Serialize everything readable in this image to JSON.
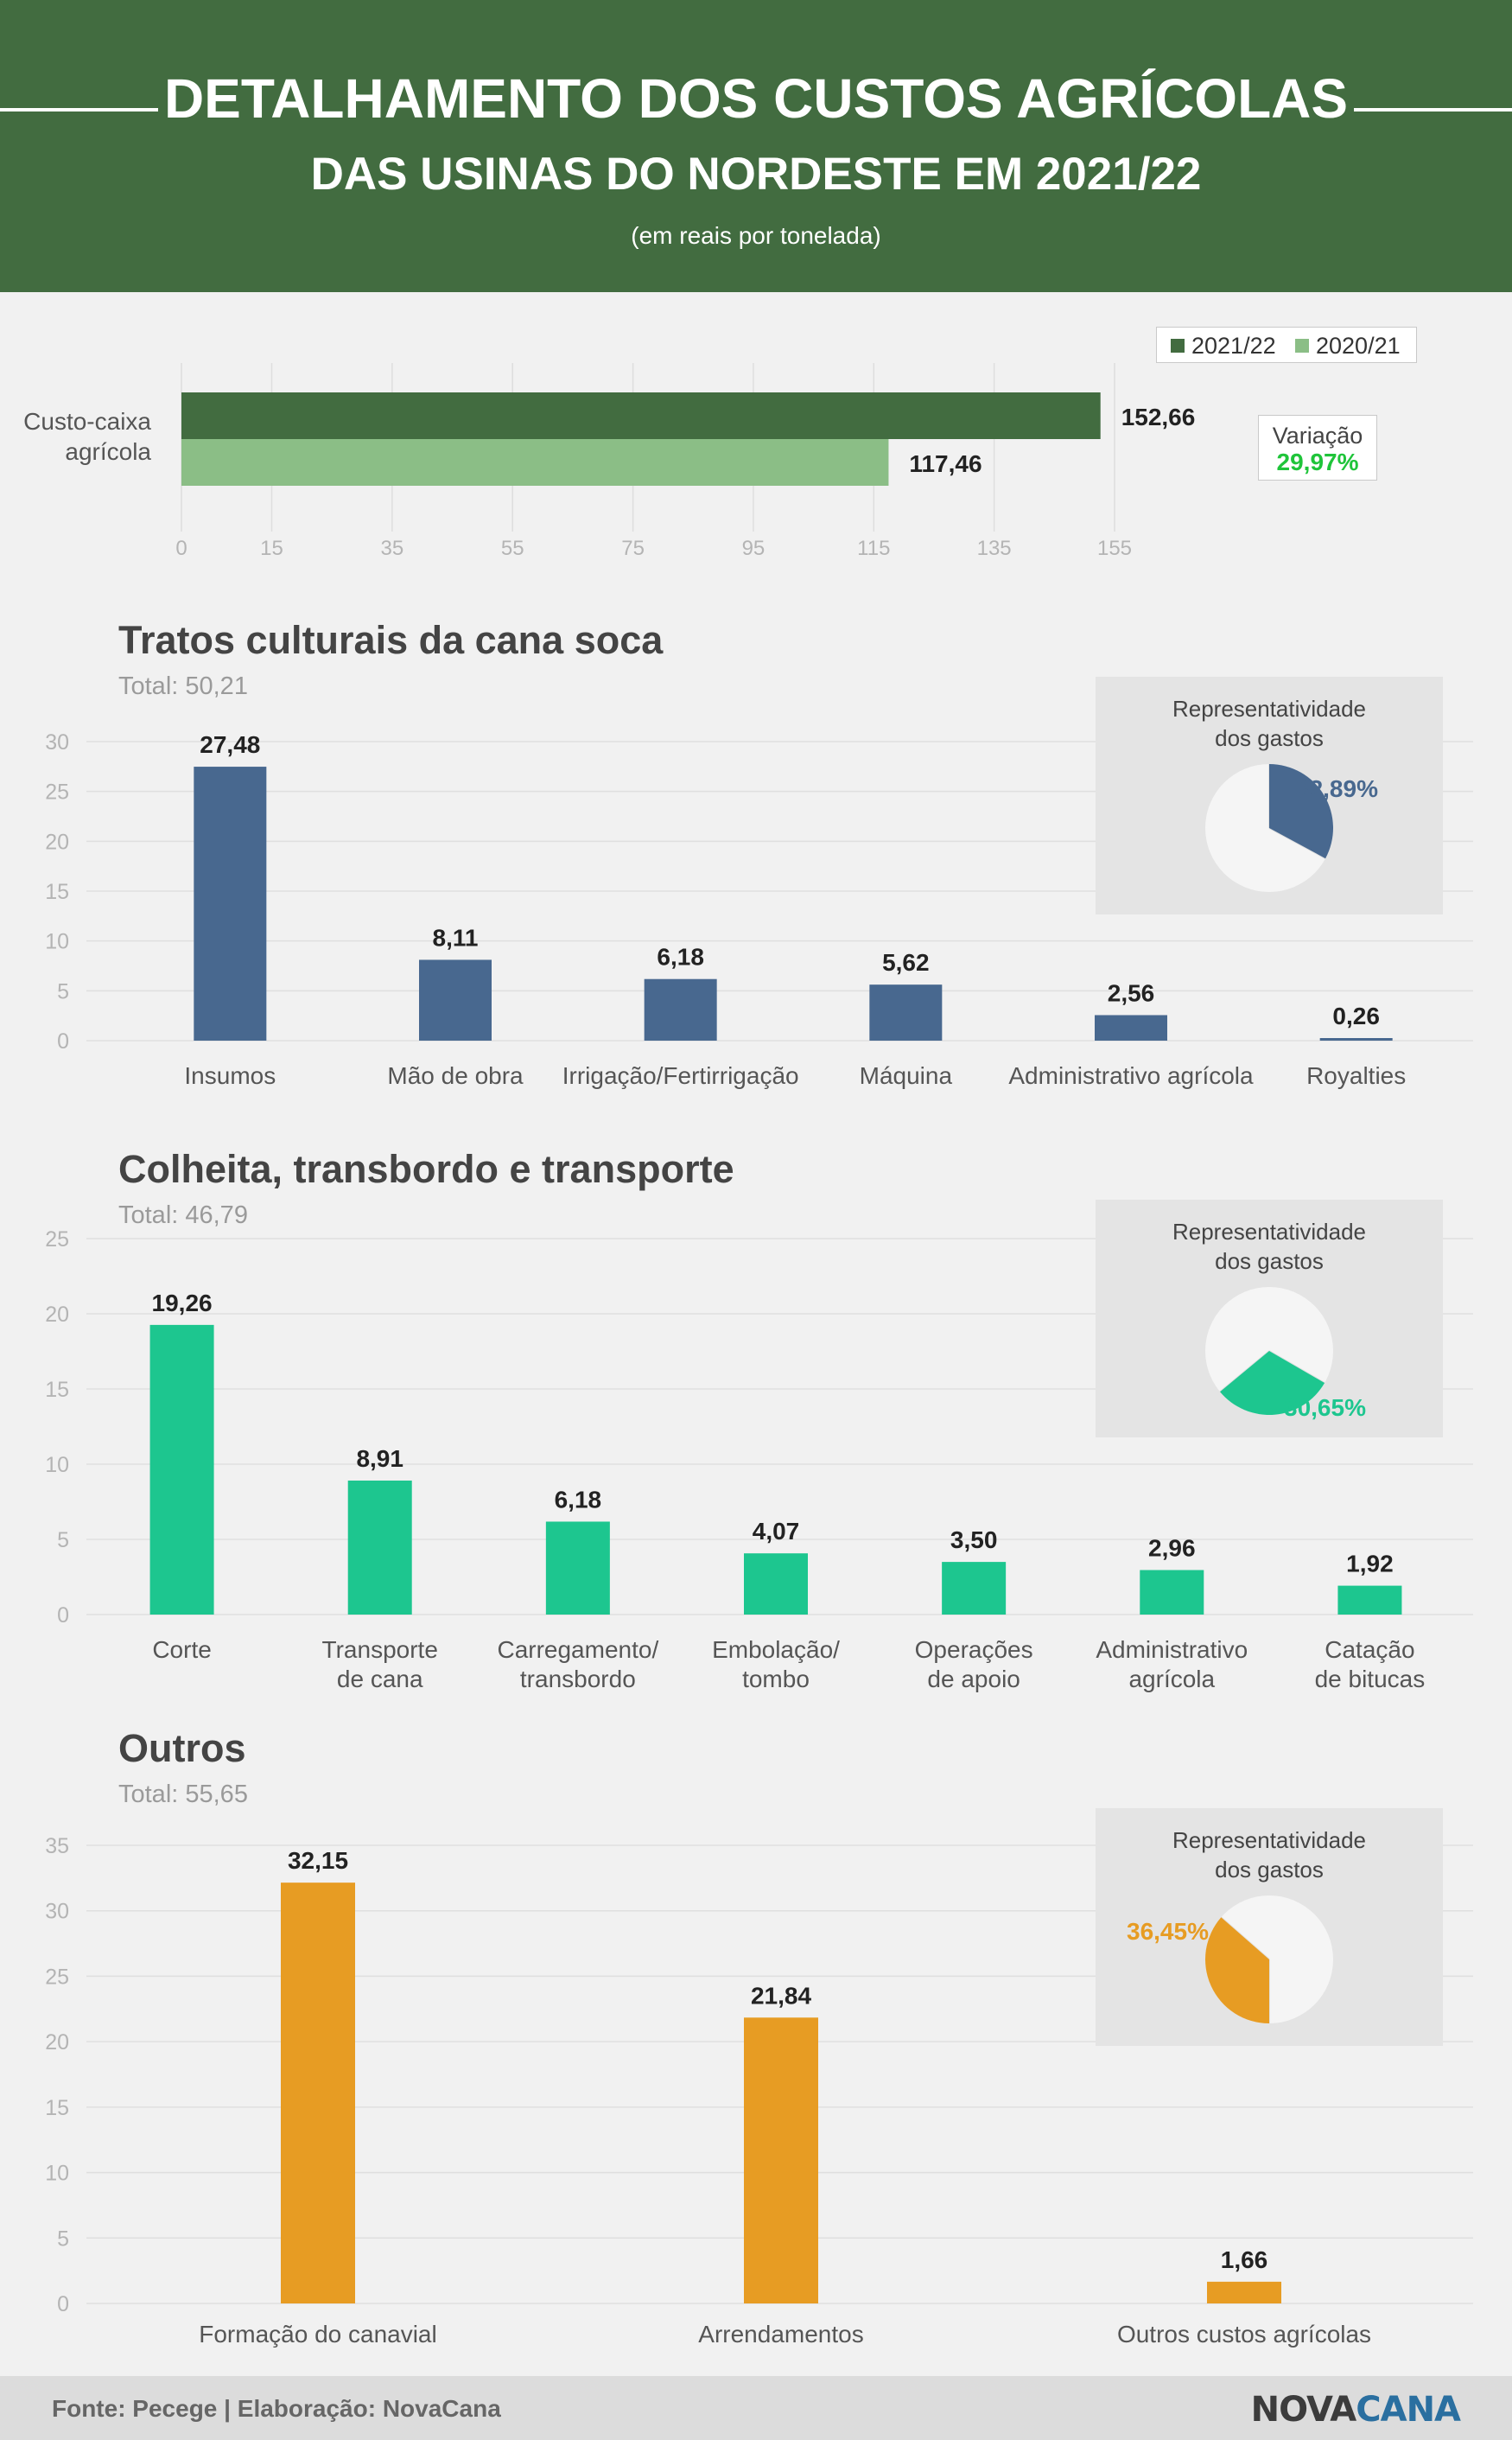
{
  "header": {
    "title_line1": "DETALHAMENTO DOS CUSTOS AGRÍCOLAS",
    "title_line2": "DAS USINAS DO NORDESTE EM 2021/22",
    "subtitle": "(em reais por tonelada)"
  },
  "colors": {
    "header_bg": "#426c40",
    "dark_green": "#426c40",
    "light_green": "#8bbe86",
    "blue": "#48688f",
    "teal": "#1dc68f",
    "orange": "#e79c23",
    "variation_green": "#1fc43a"
  },
  "overview": {
    "legend": [
      "2021/22",
      "2020/21"
    ],
    "variation_label": "Variação",
    "variation_value": "29,97%"
  },
  "sections": [
    {
      "title": "Tratos culturais da cana soca",
      "total": "Total: 50,21",
      "pie_caption": [
        "Representatividade",
        "dos gastos"
      ],
      "pie_label": "32,89%"
    },
    {
      "title": "Colheita, transbordo e transporte",
      "total": "Total: 46,79",
      "pie_caption": [
        "Representatividade",
        "dos gastos"
      ],
      "pie_label": "30,65%"
    },
    {
      "title": "Outros",
      "total": "Total: 55,65",
      "pie_caption": [
        "Representatividade",
        "dos gastos"
      ],
      "pie_label": "36,45%"
    }
  ],
  "footer": {
    "source": "Fonte: Pecege | Elaboração: NovaCana",
    "logo_part1": "NOVA",
    "logo_part2": "CANA"
  },
  "chart_data": [
    {
      "type": "bar",
      "orientation": "horizontal",
      "categories": [
        "Custo-caixa agrícola"
      ],
      "series": [
        {
          "name": "2021/22",
          "values": [
            152.66
          ],
          "labels": [
            "152,66"
          ]
        },
        {
          "name": "2020/21",
          "values": [
            117.46
          ],
          "labels": [
            "117,46"
          ]
        }
      ],
      "xticks": [
        "0",
        "15",
        "35",
        "55",
        "75",
        "95",
        "115",
        "135",
        "155"
      ],
      "xtick_values": [
        0,
        15,
        35,
        55,
        75,
        95,
        115,
        135,
        155
      ],
      "xlim": [
        0,
        155
      ],
      "grid": true,
      "legend": "top-right"
    },
    {
      "type": "bar",
      "title": "Tratos culturais da cana soca",
      "subtitle": "Total: 50,21",
      "categories": [
        [
          "Insumos"
        ],
        [
          "Mão de obra"
        ],
        [
          "Irrigação/Fertirrigação"
        ],
        [
          "Máquina"
        ],
        [
          "Administrativo agrícola"
        ],
        [
          "Royalties"
        ]
      ],
      "values": [
        27.48,
        8.11,
        6.18,
        5.62,
        2.56,
        0.26
      ],
      "labels": [
        "27,48",
        "8,11",
        "6,18",
        "5,62",
        "2,56",
        "0,26"
      ],
      "yticks": [
        "0",
        "5",
        "10",
        "15",
        "20",
        "25",
        "30"
      ],
      "ylim": [
        0,
        30
      ],
      "share": 32.89,
      "share_label": "32,89%",
      "grid": true
    },
    {
      "type": "bar",
      "title": "Colheita, transbordo e transporte",
      "subtitle": "Total: 46,79",
      "categories": [
        [
          "Corte"
        ],
        [
          "Transporte",
          "de cana"
        ],
        [
          "Carregamento/",
          "transbordo"
        ],
        [
          "Embolação/",
          "tombo"
        ],
        [
          "Operações",
          "de apoio"
        ],
        [
          "Administrativo",
          "agrícola"
        ],
        [
          "Catação",
          "de bitucas"
        ]
      ],
      "values": [
        19.26,
        8.91,
        6.18,
        4.07,
        3.5,
        2.96,
        1.92
      ],
      "labels": [
        "19,26",
        "8,91",
        "6,18",
        "4,07",
        "3,50",
        "2,96",
        "1,92"
      ],
      "yticks": [
        "0",
        "5",
        "10",
        "15",
        "20",
        "25"
      ],
      "ylim": [
        0,
        25
      ],
      "share": 30.65,
      "share_label": "30,65%",
      "grid": true
    },
    {
      "type": "bar",
      "title": "Outros",
      "subtitle": "Total: 55,65",
      "categories": [
        [
          "Formação do canavial"
        ],
        [
          "Arrendamentos"
        ],
        [
          "Outros custos agrícolas"
        ]
      ],
      "values": [
        32.15,
        21.84,
        1.66
      ],
      "labels": [
        "32,15",
        "21,84",
        "1,66"
      ],
      "yticks": [
        "0",
        "5",
        "10",
        "15",
        "20",
        "25",
        "30",
        "35"
      ],
      "ylim": [
        0,
        35
      ],
      "share": 36.45,
      "share_label": "36,45%",
      "grid": true
    }
  ]
}
